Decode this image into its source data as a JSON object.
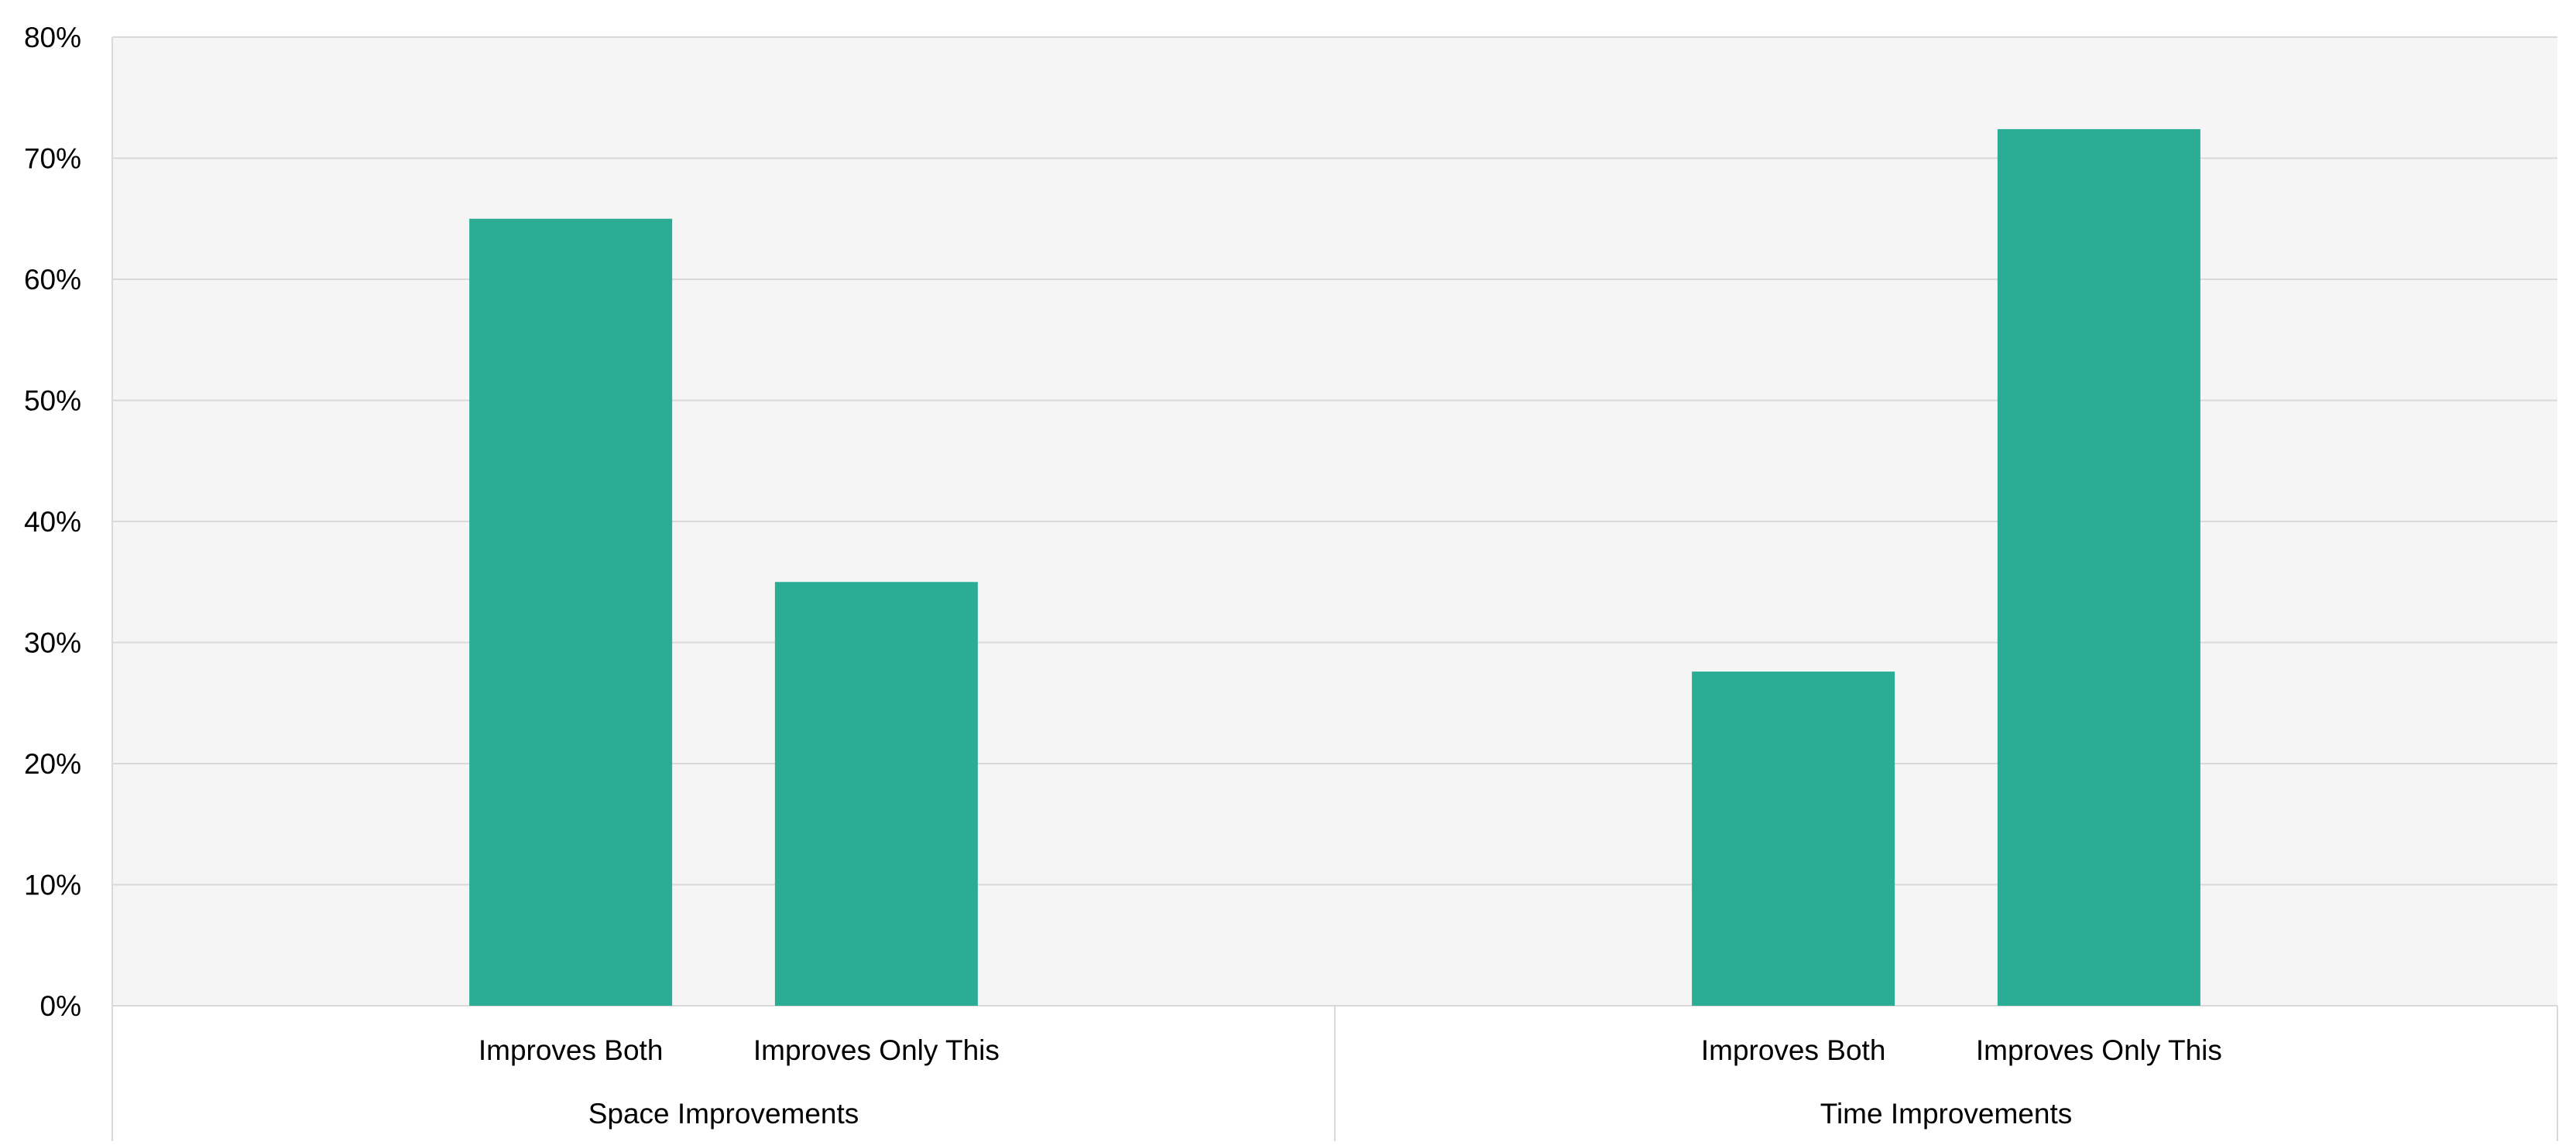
{
  "chart_data": {
    "type": "bar",
    "title": "",
    "xlabel": "",
    "ylabel": "",
    "ylim": [
      0,
      80
    ],
    "y_ticks": [
      0,
      10,
      20,
      30,
      40,
      50,
      60,
      70,
      80
    ],
    "y_tick_format": "percent",
    "y_tick_labels": [
      "0%",
      "10%",
      "20%",
      "30%",
      "40%",
      "50%",
      "60%",
      "70%",
      "80%"
    ],
    "grid": true,
    "legend": "none",
    "colors": {
      "bar": "#2aad94",
      "plot_background": "#f5f5f5",
      "gridline": "#d9d9d9",
      "axis_line": "#d9d9d9"
    },
    "groups": [
      {
        "label": "Space Improvements",
        "categories": [
          "Improves Both",
          "Improves Only This"
        ],
        "values": [
          65,
          35
        ]
      },
      {
        "label": "Time Improvements",
        "categories": [
          "Improves Both",
          "Improves Only This"
        ],
        "values": [
          27.6,
          72.4
        ]
      }
    ]
  }
}
